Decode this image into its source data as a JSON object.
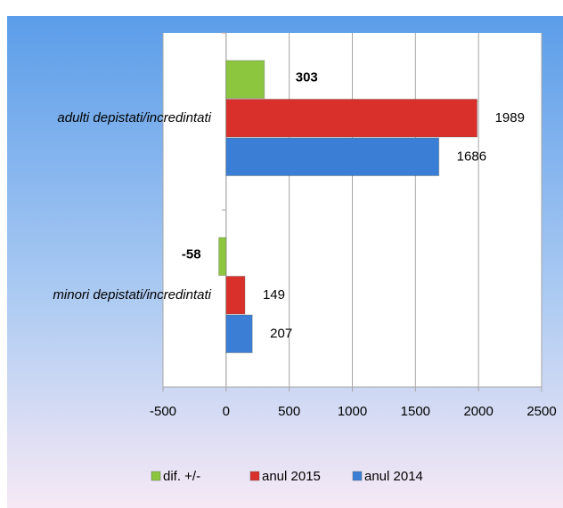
{
  "chart_data": {
    "type": "barh",
    "categories": [
      "adulti depistati/incredintati",
      "minori depistati/incredintati"
    ],
    "series": [
      {
        "name": "dif. +/-",
        "color": "#8cc63f",
        "values": [
          303,
          -58
        ]
      },
      {
        "name": "anul 2015",
        "color": "#d9302c",
        "values": [
          1989,
          149
        ]
      },
      {
        "name": "anul 2014",
        "color": "#3a7fd5",
        "values": [
          1686,
          207
        ]
      }
    ],
    "xlim": [
      -500,
      2500
    ],
    "xticks": [
      -500,
      0,
      500,
      1000,
      1500,
      2000,
      2500
    ],
    "grid": true,
    "legend": "bottom"
  }
}
